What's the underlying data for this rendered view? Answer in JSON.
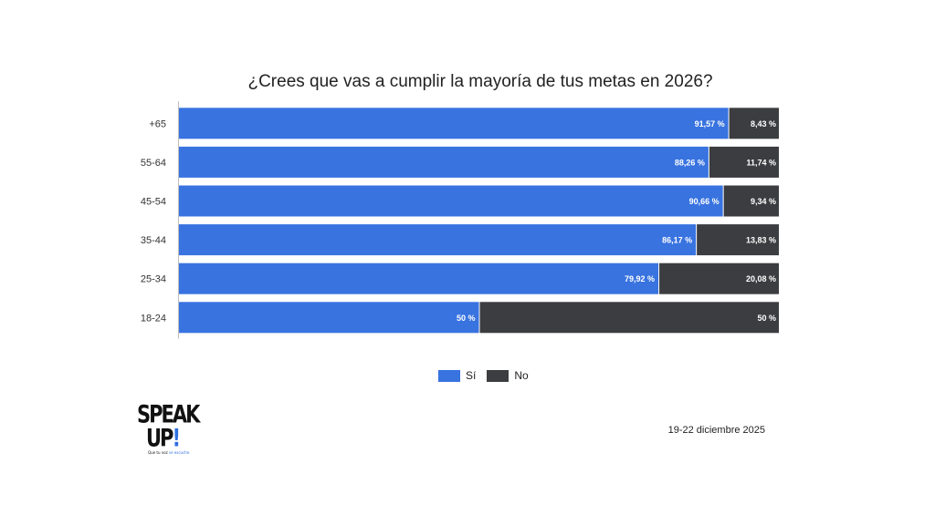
{
  "chart_data": {
    "type": "bar",
    "orientation": "horizontal",
    "stacked": "percent",
    "title": "¿Crees que vas a cumplir la mayoría de tus metas en 2026?",
    "categories": [
      "+65",
      "55-64",
      "45-54",
      "35-44",
      "25-34",
      "18-24"
    ],
    "series": [
      {
        "name": "Sí",
        "values": [
          91.57,
          88.26,
          90.66,
          86.17,
          79.92,
          50
        ],
        "labels": [
          "91,57 %",
          "88,26 %",
          "90,66 %",
          "86,17 %",
          "79,92 %",
          "50 %"
        ]
      },
      {
        "name": "No",
        "values": [
          8.43,
          11.74,
          9.34,
          13.83,
          20.08,
          50
        ],
        "labels": [
          "8,43 %",
          "11,74 %",
          "9,34 %",
          "13,83 %",
          "20,08 %",
          "50 %"
        ]
      }
    ],
    "xlim": [
      0,
      100
    ],
    "legend_position": "bottom-center"
  },
  "colors": {
    "si": "#3873e0",
    "no": "#3b3d40",
    "axis": "#bdbdbd"
  },
  "legend": {
    "items": [
      {
        "label": "Sí",
        "color": "#3873e0"
      },
      {
        "label": "No",
        "color": "#3b3d40"
      }
    ]
  },
  "logo": {
    "line1": "SPEAK",
    "line2": "UP",
    "tagline_start": "Que tu voz ",
    "tagline_end": "se escuche"
  },
  "date_label": "19-22 diciembre 2025"
}
